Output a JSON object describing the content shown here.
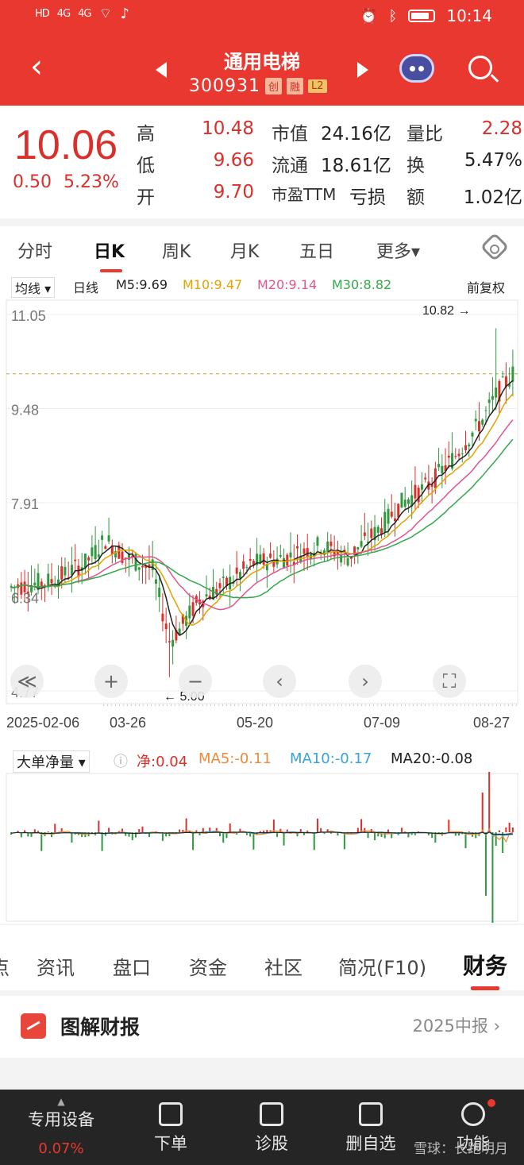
{
  "status_bar": {
    "left_icons": [
      "HD",
      "4G",
      "4G"
    ],
    "time": "10:14"
  },
  "header": {
    "title": "通用电梯",
    "code": "300931",
    "tags": [
      "创",
      "融",
      "L2"
    ]
  },
  "quote": {
    "price": "10.06",
    "change": "0.50",
    "change_pct": "5.23%",
    "cells": [
      {
        "label": "高",
        "value": "10.48"
      },
      {
        "label": "低",
        "value": "9.66"
      },
      {
        "label": "开",
        "value": "9.70"
      },
      {
        "label": "市值",
        "value": "24.16亿"
      },
      {
        "label": "流通",
        "value": "18.61亿"
      },
      {
        "label": "市盈TTM",
        "value": "亏损"
      },
      {
        "label": "量比",
        "value": "2.28"
      },
      {
        "label": "换",
        "value": "5.47%"
      },
      {
        "label": "额",
        "value": "1.02亿"
      }
    ]
  },
  "period_tabs": [
    "分时",
    "日K",
    "周K",
    "月K",
    "五日",
    "更多▾"
  ],
  "ma_legend": {
    "selector": "均线 ▾",
    "type": "日线",
    "items": [
      {
        "text": "M5:9.69",
        "color": "#222222"
      },
      {
        "text": "M10:9.47",
        "color": "#e6a100"
      },
      {
        "text": "M20:9.14",
        "color": "#e05590"
      },
      {
        "text": "M30:8.82",
        "color": "#33a84a"
      }
    ],
    "adjust": "前复权"
  },
  "flow_legend": {
    "selector": "大单净量 ▾",
    "items": [
      {
        "text": "净:0.04",
        "color": "#d9302b"
      },
      {
        "text": "MA5:-0.11",
        "color": "#ef8a3a"
      },
      {
        "text": "MA10:-0.17",
        "color": "#3aa3d9"
      },
      {
        "text": "MA20:-0.08",
        "color": "#222222"
      }
    ]
  },
  "chart_data": {
    "type": "candlestick",
    "y_ticks": [
      "11.05",
      "9.48",
      "7.91",
      "6.34",
      "4.77"
    ],
    "ylim": [
      4.77,
      11.05
    ],
    "x_ticks": [
      "2025-02-06",
      "03-26",
      "05-20",
      "07-09",
      "08-27"
    ],
    "annotations": [
      {
        "text": "10.82",
        "label": "high"
      },
      {
        "text": "5.00",
        "label": "low"
      }
    ],
    "reference_price": 10.06,
    "chart_controls": [
      "collapse",
      "zoom-in",
      "zoom-out",
      "prev",
      "next",
      "fullscreen"
    ]
  },
  "info_tabs": [
    "资讯",
    "盘口",
    "资金",
    "社区",
    "简况(F10)",
    "财务"
  ],
  "report": {
    "title": "图解财报",
    "period": "2025中报"
  },
  "bottom_bar": {
    "device": "专用设备",
    "device_pct": "0.07%",
    "items": [
      "下单",
      "诊股",
      "删自选",
      "功能"
    ]
  },
  "watermark": "雪球：长跑明月"
}
